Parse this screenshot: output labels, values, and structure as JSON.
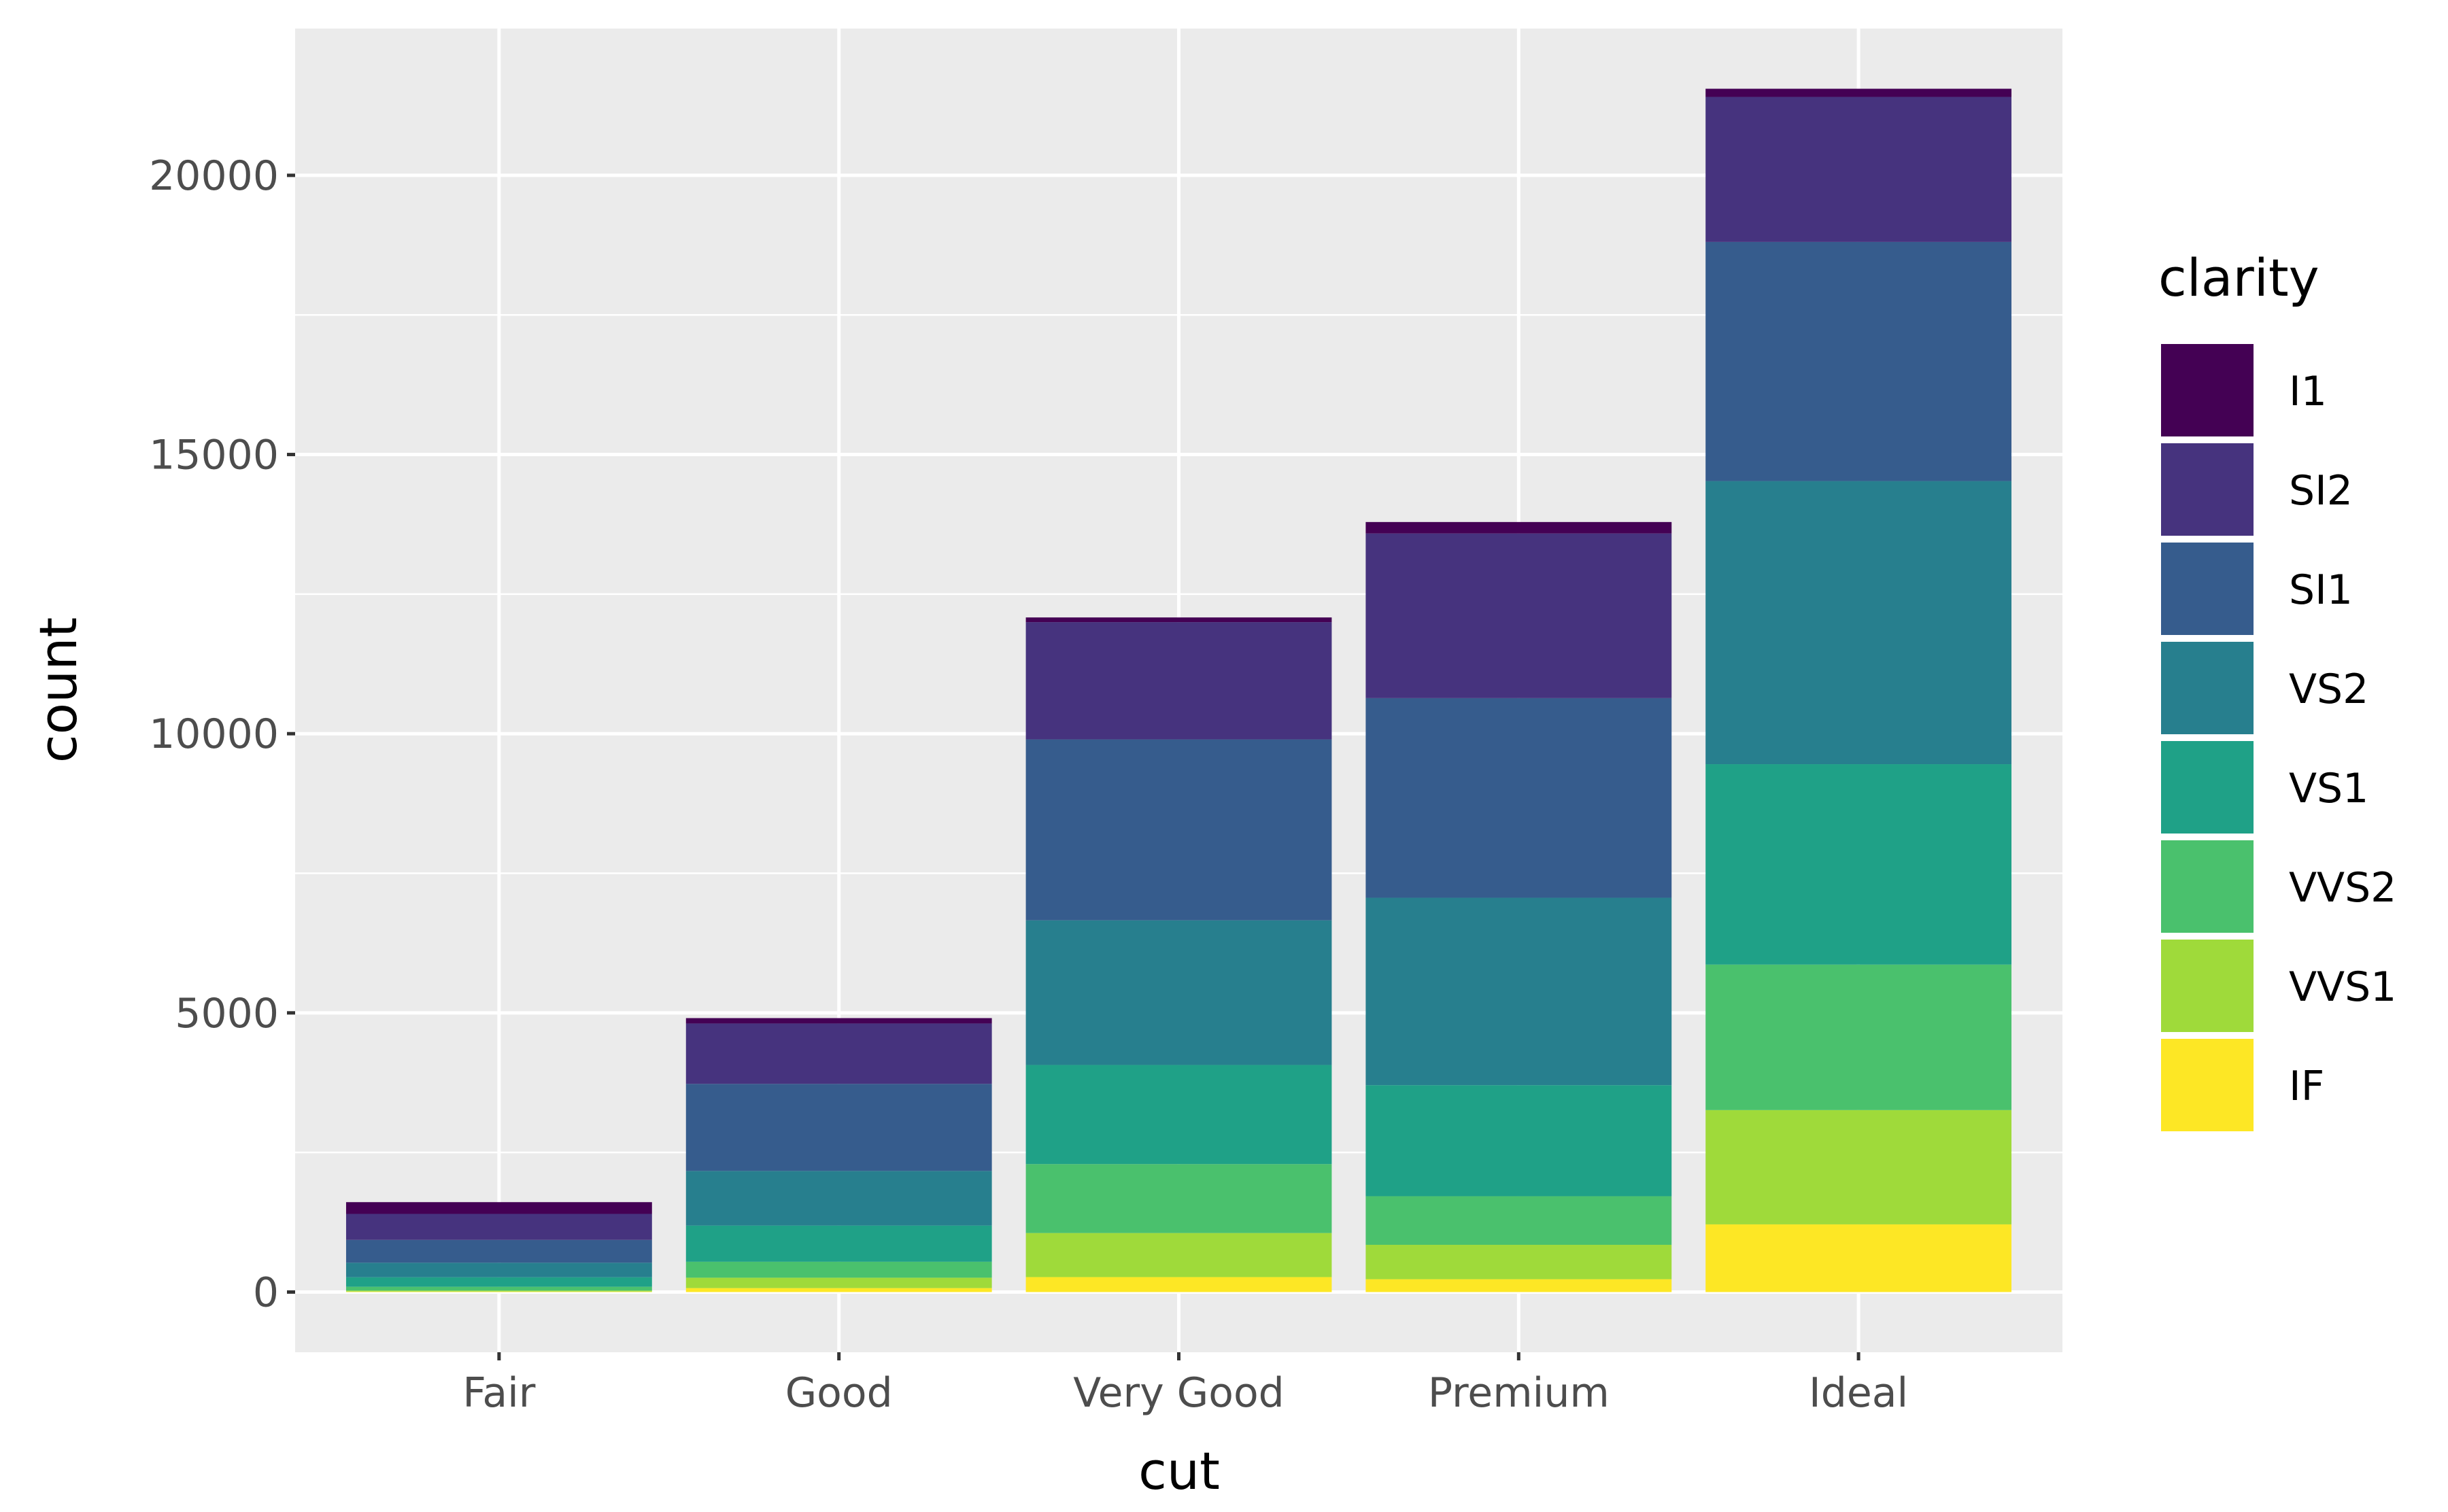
{
  "chart_data": {
    "type": "bar",
    "stacked": true,
    "title": "",
    "xlabel": "cut",
    "ylabel": "count",
    "categories": [
      "Fair",
      "Good",
      "Very Good",
      "Premium",
      "Ideal"
    ],
    "yticks": [
      0,
      5000,
      10000,
      15000,
      20000
    ],
    "ylim": [
      -1078,
      22629
    ],
    "grid": true,
    "legend": {
      "title": "clarity",
      "placement": "right"
    },
    "series": [
      {
        "name": "I1",
        "color": "#440154",
        "values": [
          210,
          96,
          84,
          205,
          146
        ]
      },
      {
        "name": "SI2",
        "color": "#46337E",
        "values": [
          466,
          1081,
          2100,
          2949,
          2598
        ]
      },
      {
        "name": "SI1",
        "color": "#365C8D",
        "values": [
          408,
          1560,
          3240,
          3575,
          4282
        ]
      },
      {
        "name": "VS2",
        "color": "#277F8E",
        "values": [
          261,
          978,
          2591,
          3357,
          5071
        ]
      },
      {
        "name": "VS1",
        "color": "#1FA187",
        "values": [
          170,
          648,
          1775,
          1989,
          3589
        ]
      },
      {
        "name": "VVS2",
        "color": "#4AC16D",
        "values": [
          69,
          286,
          1235,
          870,
          2606
        ]
      },
      {
        "name": "VVS1",
        "color": "#9FDA3A",
        "values": [
          17,
          186,
          789,
          616,
          2047
        ]
      },
      {
        "name": "IF",
        "color": "#FDE725",
        "values": [
          9,
          71,
          268,
          230,
          1212
        ]
      }
    ]
  }
}
